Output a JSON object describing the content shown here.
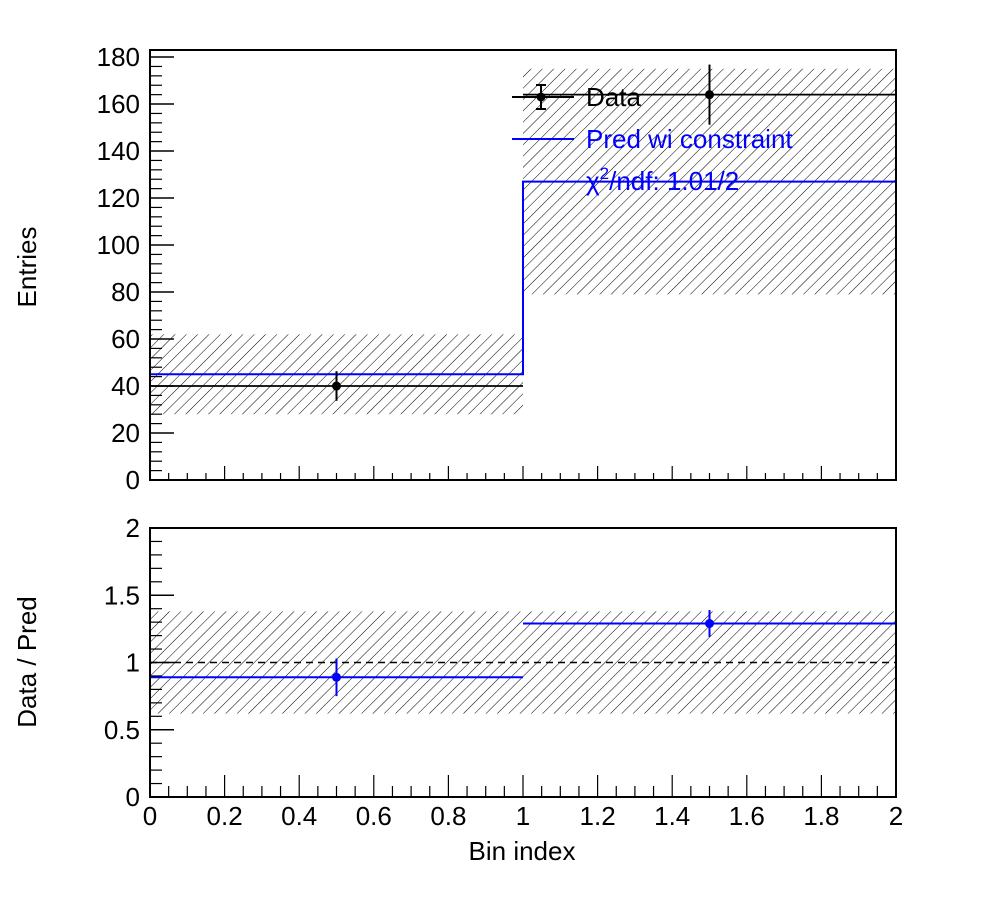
{
  "chart_data": [
    {
      "panel": "top",
      "type": "bar",
      "xlabel": "",
      "ylabel": "Entries",
      "xlim": [
        0,
        2
      ],
      "ylim": [
        0,
        183
      ],
      "yticks": [
        0,
        20,
        40,
        60,
        80,
        100,
        120,
        140,
        160,
        180
      ],
      "ytick_labels": [
        "0",
        "20",
        "40",
        "60",
        "80",
        "100",
        "120",
        "140",
        "160",
        "180"
      ],
      "bin_edges": [
        0,
        1,
        2
      ],
      "data_points": {
        "name": "Data",
        "color": "#000000",
        "x": [
          0.5,
          1.5
        ],
        "y": [
          40,
          164
        ],
        "yerr": [
          6.3,
          12.8
        ],
        "line_y": [
          40,
          164
        ]
      },
      "prediction": {
        "name": "Pred wi constraint",
        "color": "#0000ff",
        "values": [
          45,
          127
        ],
        "uncertainty_band": {
          "low": [
            28,
            79
          ],
          "high": [
            62,
            175
          ],
          "style": "hatched"
        }
      },
      "legend": {
        "placement": "top-right",
        "entries": [
          {
            "label": "Data",
            "color": "#000000"
          },
          {
            "label": "Pred wi constraint",
            "color": "#0000ff"
          },
          {
            "label_symbol": "χ",
            "label_sup": "2",
            "label_rest": "/ndf: 1.01/2",
            "color": "#0000ff"
          }
        ]
      }
    },
    {
      "panel": "bottom",
      "type": "scatter",
      "xlabel": "Bin index",
      "ylabel": "Data / Pred",
      "xlim": [
        0,
        2
      ],
      "ylim": [
        0,
        2
      ],
      "xticks": [
        0,
        0.2,
        0.4,
        0.6,
        0.8,
        1,
        1.2,
        1.4,
        1.6,
        1.8,
        2
      ],
      "xtick_labels": [
        "0",
        "0.2",
        "0.4",
        "0.6",
        "0.8",
        "1",
        "1.2",
        "1.4",
        "1.6",
        "1.8",
        "2"
      ],
      "yticks": [
        0,
        0.5,
        1,
        1.5,
        2
      ],
      "ytick_labels": [
        "0",
        "0.5",
        "1",
        "1.5",
        "2"
      ],
      "reference_line": 1,
      "ratio": {
        "color": "#0000ff",
        "x": [
          0.5,
          1.5
        ],
        "y": [
          0.89,
          1.29
        ],
        "yerr": [
          0.14,
          0.1
        ]
      },
      "uncertainty_band": {
        "low": [
          0.62,
          0.62
        ],
        "high": [
          1.38,
          1.38
        ],
        "style": "hatched"
      }
    }
  ]
}
